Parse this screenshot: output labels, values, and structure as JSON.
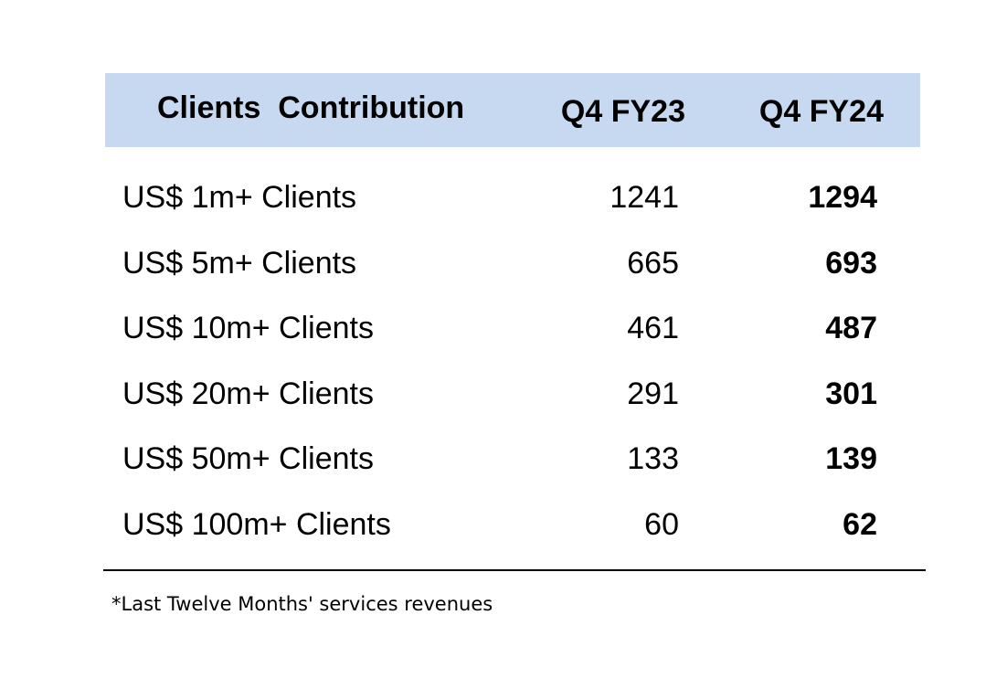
{
  "table": {
    "headers": {
      "label": "Clients  Contribution",
      "col1": "Q4 FY23",
      "col2": "Q4 FY24"
    },
    "header_bg_color": "#c6d9f0",
    "rows": [
      {
        "label": "US$ 1m+ Clients",
        "q4_fy23": "1241",
        "q4_fy24": "1294"
      },
      {
        "label": "US$ 5m+ Clients",
        "q4_fy23": "665",
        "q4_fy24": "693"
      },
      {
        "label": "US$ 10m+ Clients",
        "q4_fy23": "461",
        "q4_fy24": "487"
      },
      {
        "label": "US$ 20m+ Clients",
        "q4_fy23": "291",
        "q4_fy24": "301"
      },
      {
        "label": "US$ 50m+ Clients",
        "q4_fy23": "133",
        "q4_fy24": "139"
      },
      {
        "label": "US$ 100m+ Clients",
        "q4_fy23": "60",
        "q4_fy24": "62"
      }
    ]
  },
  "footnote": "*Last Twelve Months' services revenues"
}
